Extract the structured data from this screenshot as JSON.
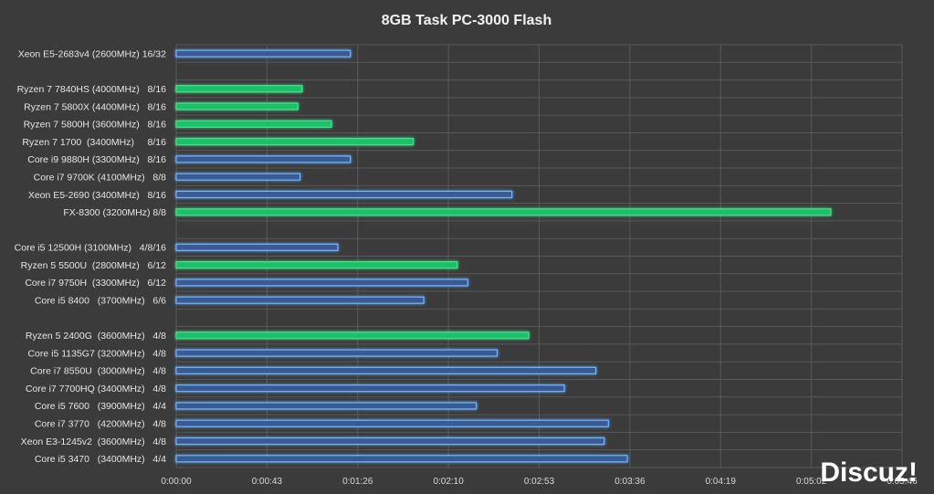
{
  "watermark": "Discuz!",
  "chart_data": {
    "type": "bar",
    "orientation": "horizontal",
    "title": "8GB Task PC-3000 Flash",
    "xlabel": "",
    "ylabel": "",
    "grid": true,
    "legend": "none",
    "colors": {
      "green": "#1fbf6a",
      "blue": "#3a5a94",
      "glow": "#6fb8ff",
      "greenglow": "#49e08a"
    },
    "x_ticks": [
      "0:00:00",
      "0:00:43",
      "0:01:26",
      "0:02:10",
      "0:02:53",
      "0:03:36",
      "0:04:19",
      "0:05:02",
      "0:05:46"
    ],
    "xlim_seconds": [
      0,
      346
    ],
    "categories": [
      {
        "label": "Xeon E5-2683v4 (2600MHz) 16/32",
        "seconds": 83,
        "color": "blue"
      },
      {
        "label": "",
        "seconds": null,
        "color": "blue"
      },
      {
        "label": "Ryzen 7 7840HS (4000MHz)   8/16",
        "seconds": 60,
        "color": "green"
      },
      {
        "label": "Ryzen 7 5800X (4400MHz)   8/16",
        "seconds": 58,
        "color": "green"
      },
      {
        "label": "Ryzen 7 5800H (3600MHz)   8/16",
        "seconds": 74,
        "color": "green"
      },
      {
        "label": "Ryzen 7 1700  (3400MHz)     8/16",
        "seconds": 113,
        "color": "green"
      },
      {
        "label": "Core i9 9880H (3300MHz)   8/16",
        "seconds": 83,
        "color": "blue"
      },
      {
        "label": "Core i7 9700K (4100MHz)   8/8",
        "seconds": 59,
        "color": "blue"
      },
      {
        "label": "Xeon E5-2690 (3400MHz)   8/16",
        "seconds": 160,
        "color": "blue"
      },
      {
        "label": "FX-8300 (3200MHz) 8/8",
        "seconds": 312,
        "color": "green"
      },
      {
        "label": "",
        "seconds": null,
        "color": "blue"
      },
      {
        "label": "Core i5 12500H (3100MHz)   4/8/16",
        "seconds": 77,
        "color": "blue"
      },
      {
        "label": "Ryzen 5 5500U  (2800MHz)   6/12",
        "seconds": 134,
        "color": "green"
      },
      {
        "label": "Core i7 9750H  (3300MHz)   6/12",
        "seconds": 139,
        "color": "blue"
      },
      {
        "label": "Core i5 8400   (3700MHz)   6/6",
        "seconds": 118,
        "color": "blue"
      },
      {
        "label": "",
        "seconds": null,
        "color": "blue"
      },
      {
        "label": "Ryzen 5 2400G  (3600MHz)   4/8",
        "seconds": 168,
        "color": "green"
      },
      {
        "label": "Core i5 1135G7 (3200MHz)   4/8",
        "seconds": 153,
        "color": "blue"
      },
      {
        "label": "Core i7 8550U  (3000MHz)   4/8",
        "seconds": 200,
        "color": "blue"
      },
      {
        "label": "Core i7 7700HQ (3400MHz)   4/8",
        "seconds": 185,
        "color": "blue"
      },
      {
        "label": "Core i5 7600   (3900MHz)   4/4",
        "seconds": 143,
        "color": "blue"
      },
      {
        "label": "Core i7 3770   (4200MHz)   4/8",
        "seconds": 206,
        "color": "blue"
      },
      {
        "label": "Xeon E3-1245v2  (3600MHz)   4/8",
        "seconds": 204,
        "color": "blue"
      },
      {
        "label": "Core i5 3470   (3400MHz)   4/4",
        "seconds": 215,
        "color": "blue"
      }
    ]
  }
}
